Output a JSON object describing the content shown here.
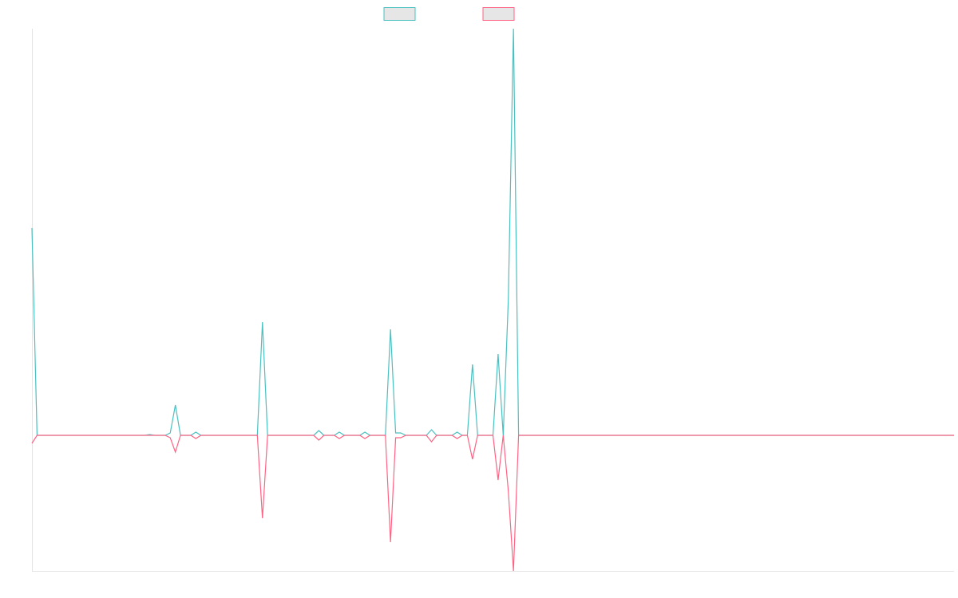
{
  "chart_data": {
    "type": "line",
    "ylim": [
      -170,
      510
    ],
    "series": [
      {
        "color": "#4bc0c0",
        "values": [
          260,
          0,
          0,
          0,
          0,
          0,
          0,
          0,
          0,
          0,
          0,
          0,
          0,
          0,
          0,
          0,
          0,
          0,
          0,
          0,
          0,
          0,
          0,
          1,
          0,
          0,
          0,
          3,
          38,
          0,
          0,
          0,
          4,
          0,
          0,
          0,
          0,
          0,
          0,
          0,
          0,
          0,
          0,
          0,
          0,
          142,
          0,
          0,
          0,
          0,
          0,
          0,
          0,
          0,
          0,
          0,
          6,
          0,
          0,
          0,
          4,
          0,
          0,
          0,
          0,
          4,
          0,
          0,
          0,
          0,
          133,
          3,
          3,
          0,
          0,
          0,
          0,
          0,
          7,
          0,
          0,
          0,
          0,
          4,
          0,
          0,
          89,
          0,
          0,
          0,
          0,
          102,
          0,
          171,
          510,
          0,
          0,
          0,
          0,
          0,
          0,
          0,
          0,
          0,
          0,
          0,
          0,
          0,
          0,
          0,
          0,
          0,
          0,
          0,
          0,
          0,
          0,
          0,
          0,
          0,
          0,
          0,
          0,
          0,
          0,
          0,
          0,
          0,
          0,
          0,
          0,
          0,
          0,
          0,
          0,
          0,
          0,
          0,
          0,
          0,
          0,
          0,
          0,
          0,
          0,
          0,
          0,
          0,
          0,
          0,
          0,
          0,
          0,
          0,
          0,
          0,
          0,
          0,
          0,
          0,
          0,
          0,
          0,
          0,
          0,
          0,
          0,
          0,
          0,
          0,
          0,
          0,
          0,
          0,
          0,
          0,
          0,
          0,
          0,
          0,
          0
        ]
      },
      {
        "color": "#ff6384",
        "values": [
          -10,
          0,
          0,
          0,
          0,
          0,
          0,
          0,
          0,
          0,
          0,
          0,
          0,
          0,
          0,
          0,
          0,
          0,
          0,
          0,
          0,
          0,
          0,
          0,
          0,
          0,
          0,
          -3,
          -21,
          0,
          0,
          0,
          -4,
          0,
          0,
          0,
          0,
          0,
          0,
          0,
          0,
          0,
          0,
          0,
          0,
          -104,
          0,
          0,
          0,
          0,
          0,
          0,
          0,
          0,
          0,
          0,
          -6,
          0,
          0,
          0,
          -4,
          0,
          0,
          0,
          0,
          -4,
          0,
          0,
          0,
          0,
          -134,
          -3,
          -3,
          0,
          0,
          0,
          0,
          0,
          -8,
          0,
          0,
          0,
          0,
          -4,
          0,
          0,
          -30,
          0,
          0,
          0,
          0,
          -56,
          0,
          -70,
          -170,
          0,
          0,
          0,
          0,
          0,
          0,
          0,
          0,
          0,
          0,
          0,
          0,
          0,
          0,
          0,
          0,
          0,
          0,
          0,
          0,
          0,
          0,
          0,
          0,
          0,
          0,
          0,
          0,
          0,
          0,
          0,
          0,
          0,
          0,
          0,
          0,
          0,
          0,
          0,
          0,
          0,
          0,
          0,
          0,
          0,
          0,
          0,
          0,
          0,
          0,
          0,
          0,
          0,
          0,
          0,
          0,
          0,
          0,
          0,
          0,
          0,
          0,
          0,
          0,
          0,
          0,
          0,
          0,
          0,
          0,
          0,
          0,
          0,
          0,
          0,
          0,
          0,
          0,
          0,
          0,
          0,
          0,
          0,
          0,
          0,
          0
        ]
      }
    ]
  }
}
